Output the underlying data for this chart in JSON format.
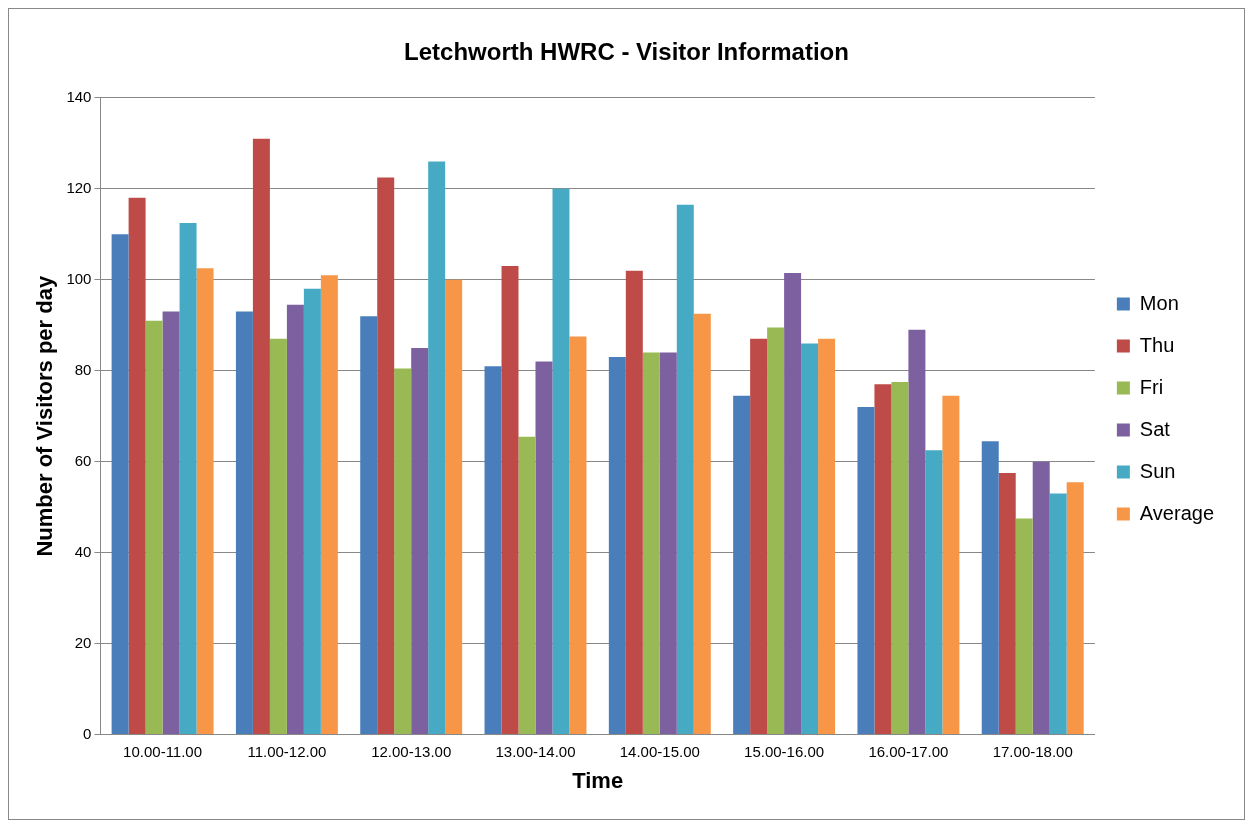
{
  "chart_data": {
    "type": "bar",
    "title": "Letchworth HWRC - Visitor Information",
    "xlabel": "Time",
    "ylabel": "Number of Visitors per day",
    "categories": [
      "10.00-11.00",
      "11.00-12.00",
      "12.00-13.00",
      "13.00-14.00",
      "14.00-15.00",
      "15.00-16.00",
      "16.00-17.00",
      "17.00-18.00"
    ],
    "series": [
      {
        "name": "Mon",
        "color": "#4a7ebb",
        "values": [
          110,
          93,
          92,
          81,
          83,
          74.5,
          72,
          64.5
        ]
      },
      {
        "name": "Thu",
        "color": "#be4b48",
        "values": [
          118,
          131,
          122.5,
          103,
          102,
          87,
          77,
          57.5
        ]
      },
      {
        "name": "Fri",
        "color": "#98b954",
        "values": [
          91,
          87,
          80.5,
          65.5,
          84,
          89.5,
          77.5,
          47.5
        ]
      },
      {
        "name": "Sat",
        "color": "#7d60a0",
        "values": [
          93,
          94.5,
          85,
          82,
          84,
          101.5,
          89,
          60
        ]
      },
      {
        "name": "Sun",
        "color": "#46aac5",
        "values": [
          112.5,
          98,
          126,
          120,
          116.5,
          86,
          62.5,
          53
        ]
      },
      {
        "name": "Average",
        "color": "#f79646",
        "values": [
          102.5,
          101,
          100,
          87.5,
          92.5,
          87,
          74.5,
          55.5
        ]
      }
    ],
    "ylim": [
      0,
      140
    ],
    "yticks": [
      0,
      20,
      40,
      60,
      80,
      100,
      120,
      140
    ],
    "grid": "y",
    "legend": "right"
  }
}
